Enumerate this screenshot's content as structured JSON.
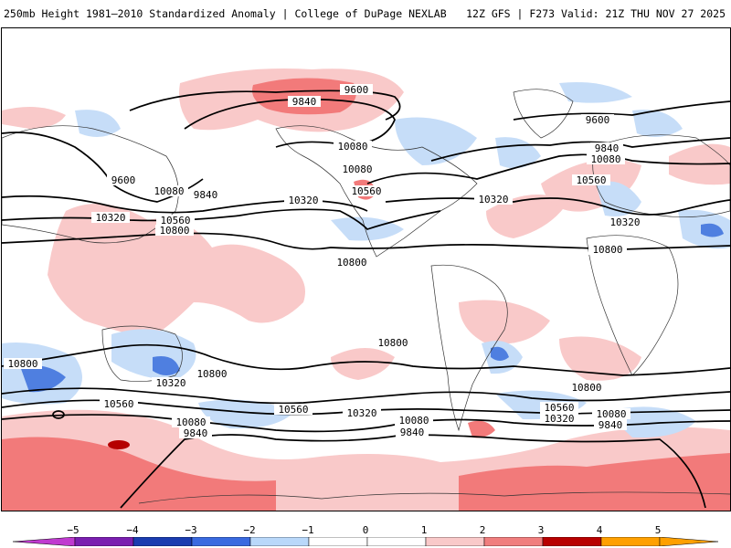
{
  "header": {
    "title": "250mb Height 1981–2010 Standardized Anomaly | College of DuPage NEXLAB",
    "run_info": "12Z GFS | F273 Valid: 21Z THU NOV 27 2025"
  },
  "contour_labels": [
    "9600",
    "9840",
    "10080",
    "10320",
    "10560",
    "10800"
  ],
  "map_labels": [
    {
      "id": "lbl-9600-top",
      "text": "9600"
    },
    {
      "id": "lbl-9840-alaska",
      "text": "9840"
    },
    {
      "id": "lbl-10080-alaska",
      "text": "10080"
    },
    {
      "id": "lbl-9600-pacific",
      "text": "9600"
    },
    {
      "id": "lbl-10080-pacific",
      "text": "10080"
    },
    {
      "id": "lbl-9840-pacific",
      "text": "9840"
    },
    {
      "id": "lbl-10320-pacific-w",
      "text": "10320"
    },
    {
      "id": "lbl-10560-pacific",
      "text": "10560"
    },
    {
      "id": "lbl-10800-pacific",
      "text": "10800"
    },
    {
      "id": "lbl-10320-pacific-e",
      "text": "10320"
    },
    {
      "id": "lbl-10080-canada",
      "text": "10080"
    },
    {
      "id": "lbl-10560-cal",
      "text": "10560"
    },
    {
      "id": "lbl-10800-gulf",
      "text": "10800"
    },
    {
      "id": "lbl-10320-atl",
      "text": "10320"
    },
    {
      "id": "lbl-9600-greenland",
      "text": "9600"
    },
    {
      "id": "lbl-9840-atl",
      "text": "9840"
    },
    {
      "id": "lbl-10080-atl",
      "text": "10080"
    },
    {
      "id": "lbl-10560-atl",
      "text": "10560"
    },
    {
      "id": "lbl-10320-europe",
      "text": "10320"
    },
    {
      "id": "lbl-10800-africa",
      "text": "10800"
    },
    {
      "id": "lbl-10800-sw",
      "text": "10800"
    },
    {
      "id": "lbl-10320-aus",
      "text": "10320"
    },
    {
      "id": "lbl-10560-sw",
      "text": "10560"
    },
    {
      "id": "lbl-10800-tasman",
      "text": "10800"
    },
    {
      "id": "lbl-10080-sw",
      "text": "10080"
    },
    {
      "id": "lbl-9840-sw",
      "text": "9840"
    },
    {
      "id": "lbl-10560-spac",
      "text": "10560"
    },
    {
      "id": "lbl-10320-spac",
      "text": "10320"
    },
    {
      "id": "lbl-10080-spac",
      "text": "10080"
    },
    {
      "id": "lbl-9840-spac",
      "text": "9840"
    },
    {
      "id": "lbl-10800-spac",
      "text": "10800"
    },
    {
      "id": "lbl-10800-satl",
      "text": "10800"
    },
    {
      "id": "lbl-10560-satl",
      "text": "10560"
    },
    {
      "id": "lbl-10320-satl",
      "text": "10320"
    },
    {
      "id": "lbl-10080-satl",
      "text": "10080"
    },
    {
      "id": "lbl-9840-satl",
      "text": "9840"
    }
  ],
  "colorbar": {
    "ticks": [
      "−5",
      "−4",
      "−3",
      "−2",
      "−1",
      "0",
      "1",
      "2",
      "3",
      "4",
      "5"
    ],
    "colors": {
      "neg5": "#c03ad0",
      "neg4": "#7a1fb0",
      "neg3": "#1a3cb0",
      "neg2": "#3a6ae0",
      "neg1": "#b9d8fa",
      "zero": "#ffffff",
      "pos1": "#f9c9c9",
      "pos2": "#f07e7e",
      "pos3": "#e03a3a",
      "pos4": "#b80000",
      "pos5": "#ffa000"
    }
  },
  "map": {
    "colors": {
      "ocean": "#ffffff",
      "pos_weak": "#f9c9c9",
      "pos_mod": "#f27a7a",
      "pos_strong": "#e23b3b",
      "pos_extreme": "#b50000",
      "neg_weak": "#c6ddf8",
      "neg_mod": "#4f7fe0",
      "neg_strong": "#1f47c0"
    }
  }
}
